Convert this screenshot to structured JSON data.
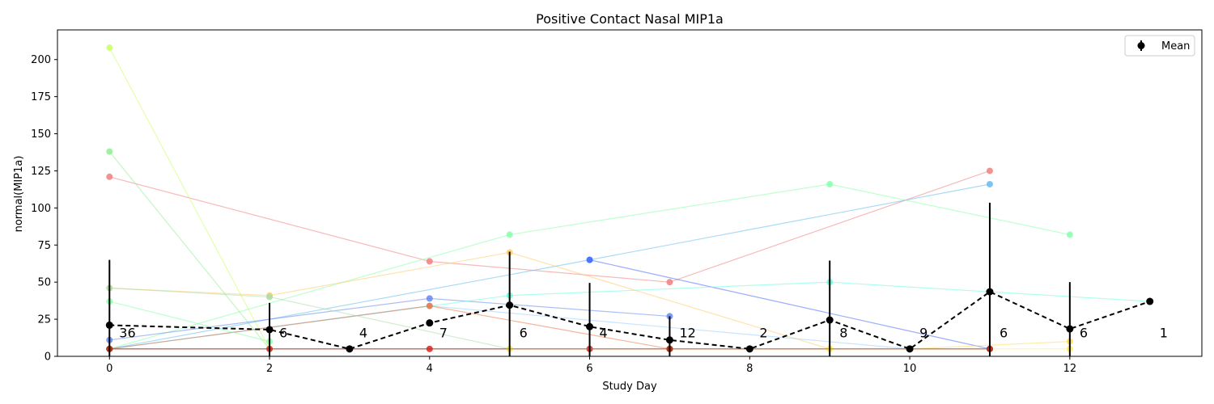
{
  "chart_data": {
    "type": "line",
    "title": "Positive Contact Nasal MIP1a",
    "xlabel": "Study Day",
    "ylabel": "normal(MIP1a)",
    "xlim": [
      -0.65,
      13.65
    ],
    "ylim": [
      0,
      220
    ],
    "xticks": [
      0,
      2,
      4,
      6,
      8,
      10,
      12
    ],
    "yticks": [
      0,
      25,
      50,
      75,
      100,
      125,
      150,
      175,
      200
    ],
    "grid": false,
    "legend": {
      "position": "top-right",
      "entries": [
        "Mean"
      ]
    },
    "mean": {
      "name": "Mean",
      "color": "#000000",
      "x": [
        0,
        2,
        3,
        4,
        5,
        6,
        7,
        8,
        9,
        10,
        11,
        12,
        13
      ],
      "y": [
        21,
        18,
        5,
        22.5,
        34.5,
        20,
        11,
        5,
        24.5,
        5,
        43.5,
        18.5,
        37
      ],
      "err": [
        44,
        18,
        0,
        0,
        36,
        29.5,
        16,
        0,
        40,
        0,
        60,
        31.5,
        0
      ]
    },
    "counts": {
      "x": [
        0,
        2,
        3,
        4,
        5,
        6,
        7,
        8,
        9,
        10,
        11,
        12,
        13
      ],
      "labels": [
        "36",
        "6",
        "4",
        "7",
        "6",
        "4",
        "12",
        "2",
        "8",
        "9",
        "6",
        "6",
        "1"
      ],
      "y": 15
    },
    "series": [
      {
        "color": "#f08080",
        "x": [
          0,
          4,
          7,
          11
        ],
        "y": [
          121,
          64,
          50,
          125
        ]
      },
      {
        "color": "#90ee90",
        "x": [
          0,
          2
        ],
        "y": [
          138,
          5
        ]
      },
      {
        "color": "#ccff66",
        "x": [
          0,
          2
        ],
        "y": [
          208,
          5
        ]
      },
      {
        "color": "#66bbee",
        "x": [
          0,
          6,
          11
        ],
        "y": [
          5,
          65,
          116
        ]
      },
      {
        "color": "#88ffaa",
        "x": [
          0,
          5,
          9,
          12
        ],
        "y": [
          5,
          82,
          116,
          82
        ]
      },
      {
        "color": "#ffcc66",
        "x": [
          0,
          2,
          5,
          9
        ],
        "y": [
          46,
          41,
          70,
          5
        ]
      },
      {
        "color": "#6688ee",
        "x": [
          0,
          4,
          7
        ],
        "y": [
          11,
          39,
          27
        ]
      },
      {
        "color": "#4466ff",
        "x": [
          6,
          11
        ],
        "y": [
          65,
          5
        ]
      },
      {
        "color": "#66ffdd",
        "x": [
          0,
          5,
          9,
          13
        ],
        "y": [
          5,
          41,
          50,
          37
        ]
      },
      {
        "color": "#99ccff",
        "x": [
          0,
          4,
          10
        ],
        "y": [
          5,
          34,
          5
        ]
      },
      {
        "color": "#ee7744",
        "x": [
          0,
          4,
          7
        ],
        "y": [
          5,
          34,
          5
        ]
      },
      {
        "color": "#aaddaa",
        "x": [
          0,
          2,
          5
        ],
        "y": [
          46,
          40,
          5
        ]
      },
      {
        "color": "#88ffaa",
        "x": [
          0,
          2
        ],
        "y": [
          37,
          10
        ]
      },
      {
        "color": "#ffdd55",
        "x": [
          10,
          12
        ],
        "y": [
          5,
          10
        ]
      },
      {
        "color": "#aaeeee",
        "x": [
          0,
          6,
          11
        ],
        "y": [
          5,
          5,
          5
        ]
      },
      {
        "color": "#dd2222",
        "x": [
          0,
          2,
          4,
          6,
          7,
          10,
          11
        ],
        "y": [
          5,
          5,
          5,
          5,
          5,
          5,
          5
        ]
      },
      {
        "color": "#ffee55",
        "x": [
          5,
          9,
          12
        ],
        "y": [
          5,
          5,
          5
        ]
      },
      {
        "color": "#aa3311",
        "x": [
          0,
          7,
          11
        ],
        "y": [
          5,
          5,
          5
        ]
      }
    ]
  }
}
